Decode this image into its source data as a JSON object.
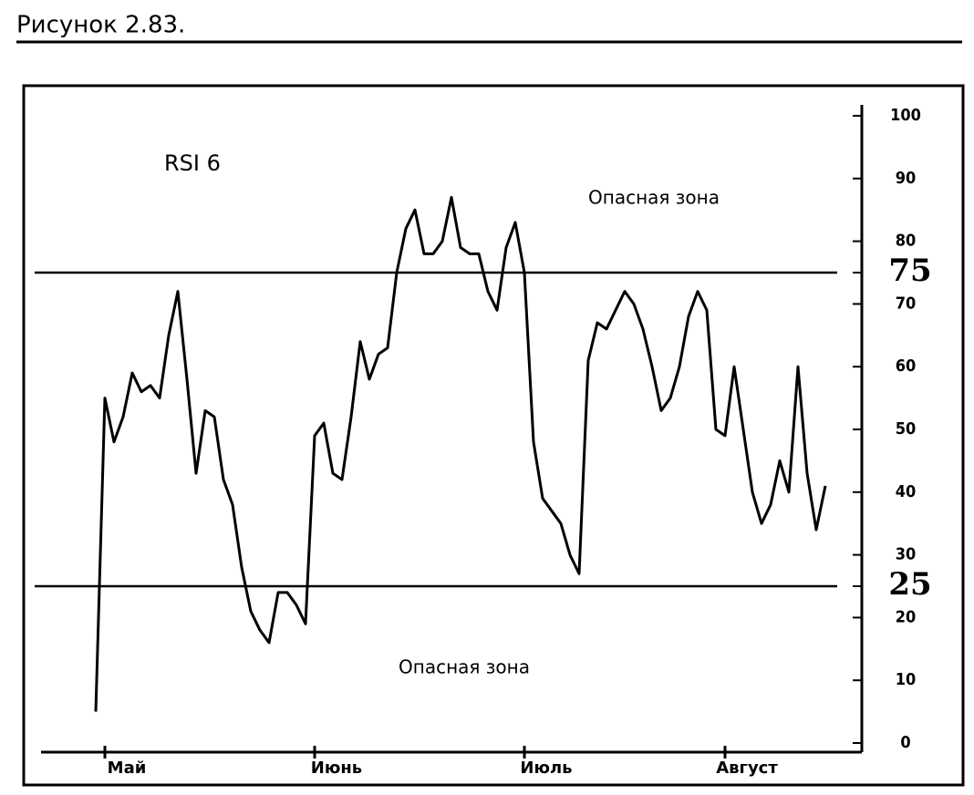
{
  "chart_data": {
    "type": "line",
    "title": "Рисунок 2.83.",
    "label": "RSI 6",
    "annotations": [
      "Опасная зона",
      "Опасная зона"
    ],
    "x": [
      0,
      1,
      2,
      3,
      4,
      5,
      6,
      7,
      8,
      9,
      10,
      11,
      12,
      13,
      14,
      15,
      16,
      17,
      18,
      19,
      20,
      21,
      22,
      23,
      24,
      25,
      26,
      27,
      28,
      29,
      30,
      31,
      32,
      33,
      34,
      35,
      36,
      37,
      38,
      39,
      40,
      41,
      42,
      43,
      44,
      45,
      46,
      47,
      48,
      49,
      50,
      51,
      52,
      53,
      54,
      55,
      56,
      57,
      58,
      59,
      60,
      61,
      62,
      63,
      64,
      65,
      66,
      67,
      68,
      69,
      70,
      71,
      72,
      73,
      74,
      75,
      76,
      77,
      78,
      79,
      80
    ],
    "series": [
      {
        "name": "RSI 6",
        "color": "#000000",
        "values": [
          5,
          55,
          48,
          52,
          59,
          56,
          57,
          55,
          65,
          72,
          58,
          43,
          53,
          52,
          42,
          38,
          28,
          21,
          18,
          16,
          24,
          24,
          22,
          19,
          49,
          51,
          43,
          42,
          52,
          64,
          58,
          62,
          63,
          75,
          82,
          85,
          78,
          78,
          80,
          87,
          79,
          78,
          78,
          72,
          69,
          79,
          83,
          75,
          48,
          39,
          37,
          35,
          30,
          27,
          61,
          67,
          66,
          69,
          72,
          70,
          66,
          60,
          53,
          55,
          60,
          68,
          72,
          69,
          50,
          49,
          60,
          50,
          40,
          35,
          38,
          45,
          40,
          60,
          43,
          34,
          41
        ]
      }
    ],
    "hlines": [
      75,
      25
    ],
    "xlim": [
      -6,
      84
    ],
    "xticks": [
      {
        "value": 1,
        "label": "Май"
      },
      {
        "value": 24,
        "label": "Июнь"
      },
      {
        "value": 47,
        "label": "Июль"
      },
      {
        "value": 69,
        "label": "Август"
      }
    ],
    "ylim": [
      0,
      100
    ],
    "yticks": [
      0,
      10,
      20,
      25,
      30,
      40,
      50,
      60,
      70,
      75,
      80,
      90,
      100
    ]
  }
}
